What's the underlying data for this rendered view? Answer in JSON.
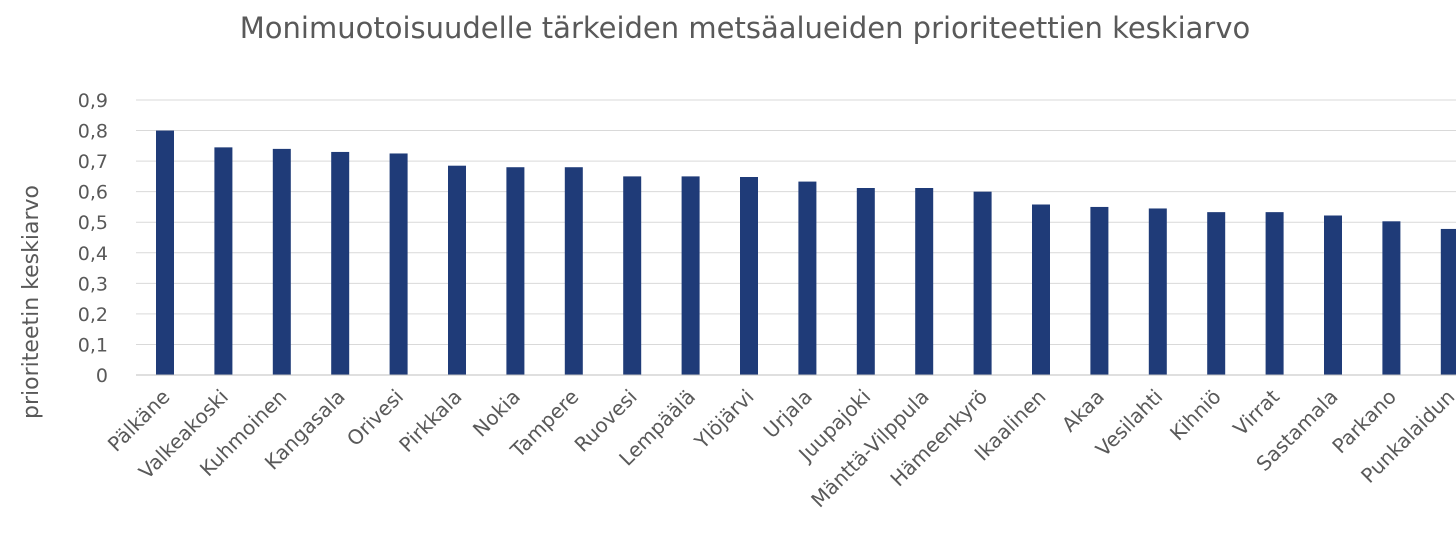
{
  "chart_data": {
    "type": "bar",
    "title": "Monimuotoisuudelle tärkeiden metsäalueiden prioriteettien keskiarvo",
    "xlabel": "",
    "ylabel": "prioriteetin keskiarvo",
    "ylim": [
      0,
      0.9
    ],
    "yticks": [
      "0",
      "0,1",
      "0,2",
      "0,3",
      "0,4",
      "0,5",
      "0,6",
      "0,7",
      "0,8",
      "0,9"
    ],
    "grid": true,
    "legend": "none",
    "color": "#1f3b78",
    "categories": [
      "Pälkäne",
      "Valkeakoski",
      "Kuhmoinen",
      "Kangasala",
      "Orivesi",
      "Pirkkala",
      "Nokia",
      "Tampere",
      "Ruovesi",
      "Lempäälä",
      "Ylöjärvi",
      "Urjala",
      "Juupajoki",
      "Mänttä-Vilppula",
      "Hämeenkyrö",
      "Ikaalinen",
      "Akaa",
      "Vesilahti",
      "Kihniö",
      "Virrat",
      "Sastamala",
      "Parkano",
      "Punkalaidun"
    ],
    "values": [
      0.8,
      0.745,
      0.74,
      0.73,
      0.725,
      0.685,
      0.68,
      0.68,
      0.65,
      0.65,
      0.648,
      0.633,
      0.612,
      0.612,
      0.6,
      0.558,
      0.55,
      0.545,
      0.533,
      0.533,
      0.522,
      0.503,
      0.478
    ]
  }
}
